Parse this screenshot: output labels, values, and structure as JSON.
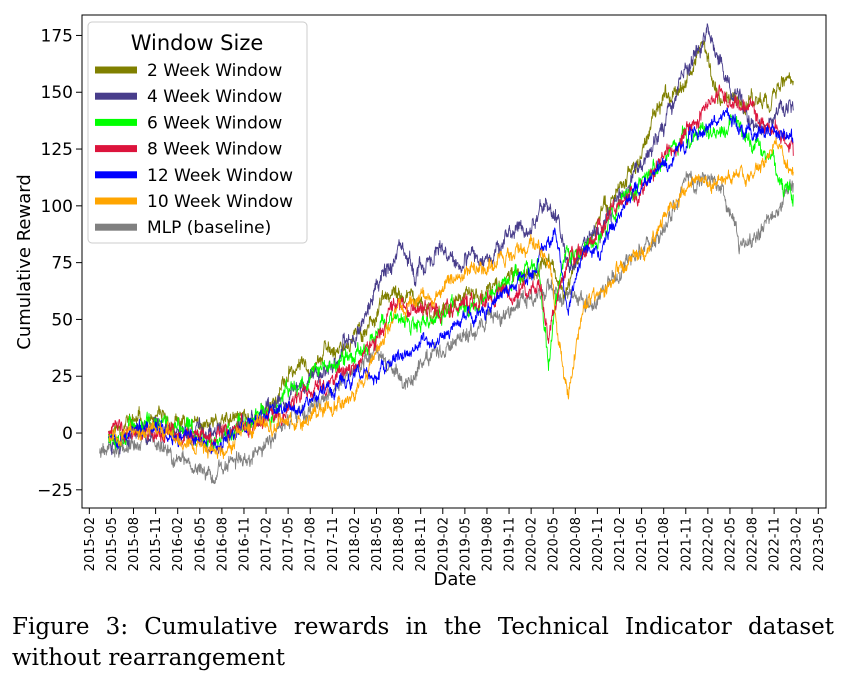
{
  "chart_data": {
    "type": "line",
    "title": "",
    "xlabel": "Date",
    "ylabel": "Cumulative Reward",
    "ylim": [
      -33,
      184
    ],
    "xlim": [
      2015.0,
      2023.42
    ],
    "yticks": [
      -25,
      0,
      25,
      50,
      75,
      100,
      125,
      150,
      175
    ],
    "ytick_labels": [
      "−25",
      "0",
      "25",
      "50",
      "75",
      "100",
      "125",
      "150",
      "175"
    ],
    "xticks": [
      2015.083,
      2015.333,
      2015.583,
      2015.833,
      2016.083,
      2016.333,
      2016.583,
      2016.833,
      2017.083,
      2017.333,
      2017.583,
      2017.833,
      2018.083,
      2018.333,
      2018.583,
      2018.833,
      2019.083,
      2019.333,
      2019.583,
      2019.833,
      2020.083,
      2020.333,
      2020.583,
      2020.833,
      2021.083,
      2021.333,
      2021.583,
      2021.833,
      2022.083,
      2022.333,
      2022.583,
      2022.833,
      2023.083,
      2023.333
    ],
    "xtick_labels": [
      "2015-02",
      "2015-05",
      "2015-08",
      "2015-11",
      "2016-02",
      "2016-05",
      "2016-08",
      "2016-11",
      "2017-02",
      "2017-05",
      "2017-08",
      "2017-11",
      "2018-02",
      "2018-05",
      "2018-08",
      "2018-11",
      "2019-02",
      "2019-05",
      "2019-08",
      "2019-11",
      "2020-02",
      "2020-05",
      "2020-08",
      "2020-11",
      "2021-02",
      "2021-05",
      "2021-08",
      "2021-11",
      "2022-02",
      "2022-05",
      "2022-08",
      "2022-11",
      "2023-02",
      "2023-05"
    ],
    "legend": {
      "title": "Window Size",
      "position": "top-left"
    },
    "series": [
      {
        "name": "2 Week Window",
        "color": "#808000",
        "noise": 2.2,
        "seed": 11,
        "x": [
          2015.3,
          2015.5,
          2015.8,
          2016.0,
          2016.3,
          2016.5,
          2016.8,
          2017.0,
          2017.2,
          2017.4,
          2017.6,
          2017.9,
          2018.2,
          2018.4,
          2018.7,
          2018.9,
          2019.2,
          2019.5,
          2019.8,
          2020.1,
          2020.25,
          2020.35,
          2020.45,
          2020.6,
          2020.8,
          2021.0,
          2021.3,
          2021.5,
          2021.75,
          2021.9,
          2022.05,
          2022.2,
          2022.4,
          2022.6,
          2022.8,
          2022.95,
          2023.05
        ],
        "values": [
          0,
          5,
          5,
          3,
          3,
          2,
          6,
          8,
          16,
          28,
          32,
          38,
          45,
          58,
          60,
          52,
          58,
          60,
          66,
          72,
          76,
          72,
          60,
          75,
          90,
          105,
          120,
          140,
          155,
          163,
          168,
          150,
          145,
          146,
          150,
          155,
          155
        ]
      },
      {
        "name": "4 Week Window",
        "color": "#483d8b",
        "noise": 2.4,
        "seed": 23,
        "x": [
          2015.3,
          2015.5,
          2015.8,
          2016.0,
          2016.3,
          2016.5,
          2016.8,
          2017.0,
          2017.2,
          2017.4,
          2017.6,
          2017.9,
          2018.1,
          2018.3,
          2018.4,
          2018.6,
          2018.8,
          2019.0,
          2019.1,
          2019.3,
          2019.6,
          2019.9,
          2020.1,
          2020.25,
          2020.35,
          2020.5,
          2020.7,
          2020.9,
          2021.1,
          2021.3,
          2021.5,
          2021.7,
          2021.85,
          2022.0,
          2022.1,
          2022.2,
          2022.35,
          2022.5,
          2022.7,
          2022.9,
          2023.05
        ],
        "values": [
          -3,
          1,
          3,
          2,
          0,
          -2,
          2,
          5,
          10,
          18,
          25,
          32,
          45,
          60,
          72,
          78,
          70,
          80,
          76,
          72,
          80,
          88,
          92,
          102,
          96,
          75,
          85,
          92,
          105,
          118,
          130,
          148,
          162,
          172,
          176,
          165,
          148,
          140,
          132,
          145,
          142
        ]
      },
      {
        "name": "6 Week Window",
        "color": "#00ff00",
        "noise": 2.3,
        "seed": 37,
        "x": [
          2015.3,
          2015.6,
          2015.9,
          2016.1,
          2016.3,
          2016.5,
          2016.8,
          2017.0,
          2017.2,
          2017.4,
          2017.6,
          2017.9,
          2018.2,
          2018.4,
          2018.6,
          2018.8,
          2019.0,
          2019.2,
          2019.5,
          2019.8,
          2020.0,
          2020.15,
          2020.2,
          2020.28,
          2020.35,
          2020.45,
          2020.6,
          2020.8,
          2021.0,
          2021.2,
          2021.5,
          2021.8,
          2022.0,
          2022.2,
          2022.4,
          2022.6,
          2022.8,
          2022.95,
          2023.05
        ],
        "values": [
          0,
          4,
          3,
          2,
          0,
          -2,
          2,
          6,
          10,
          20,
          27,
          30,
          38,
          50,
          48,
          45,
          50,
          55,
          58,
          65,
          72,
          75,
          60,
          30,
          55,
          75,
          80,
          82,
          98,
          108,
          118,
          128,
          135,
          130,
          138,
          126,
          122,
          110,
          105
        ]
      },
      {
        "name": "8 Week Window",
        "color": "#dc143c",
        "noise": 2.2,
        "seed": 41,
        "x": [
          2015.3,
          2015.6,
          2015.9,
          2016.1,
          2016.3,
          2016.5,
          2016.8,
          2017.0,
          2017.2,
          2017.4,
          2017.6,
          2017.9,
          2018.2,
          2018.4,
          2018.6,
          2018.8,
          2019.0,
          2019.2,
          2019.5,
          2019.8,
          2020.1,
          2020.2,
          2020.28,
          2020.35,
          2020.5,
          2020.7,
          2020.9,
          2021.1,
          2021.4,
          2021.6,
          2021.8,
          2022.0,
          2022.2,
          2022.4,
          2022.6,
          2022.8,
          2022.95,
          2023.05
        ],
        "values": [
          0,
          2,
          1,
          0,
          -2,
          -3,
          0,
          4,
          8,
          14,
          18,
          25,
          35,
          45,
          55,
          52,
          54,
          55,
          58,
          62,
          65,
          60,
          35,
          55,
          75,
          82,
          90,
          100,
          110,
          122,
          132,
          142,
          150,
          145,
          140,
          135,
          128,
          122
        ]
      },
      {
        "name": "12 Week Window",
        "color": "#0000ff",
        "noise": 1.9,
        "seed": 53,
        "x": [
          2015.3,
          2015.6,
          2015.9,
          2016.1,
          2016.3,
          2016.5,
          2016.8,
          2017.0,
          2017.2,
          2017.5,
          2017.8,
          2018.1,
          2018.4,
          2018.6,
          2018.8,
          2019.0,
          2019.3,
          2019.6,
          2019.9,
          2020.1,
          2020.25,
          2020.35,
          2020.5,
          2020.7,
          2020.9,
          2021.1,
          2021.4,
          2021.6,
          2021.85,
          2022.1,
          2022.3,
          2022.5,
          2022.7,
          2022.9,
          2023.05
        ],
        "values": [
          0,
          1,
          0,
          -2,
          -3,
          -5,
          2,
          6,
          10,
          14,
          20,
          24,
          26,
          34,
          38,
          40,
          48,
          56,
          65,
          72,
          85,
          88,
          55,
          80,
          82,
          100,
          112,
          118,
          128,
          136,
          142,
          132,
          135,
          130,
          128
        ]
      },
      {
        "name": "10 Week Window",
        "color": "#ffa500",
        "noise": 2.0,
        "seed": 67,
        "x": [
          2015.3,
          2015.6,
          2015.9,
          2016.1,
          2016.3,
          2016.5,
          2016.8,
          2017.0,
          2017.2,
          2017.4,
          2017.6,
          2017.9,
          2018.2,
          2018.4,
          2018.6,
          2018.8,
          2019.0,
          2019.3,
          2019.6,
          2019.9,
          2020.1,
          2020.2,
          2020.3,
          2020.4,
          2020.5,
          2020.6,
          2020.7,
          2020.9,
          2021.1,
          2021.4,
          2021.7,
          2021.9,
          2022.1,
          2022.3,
          2022.5,
          2022.7,
          2022.9,
          2023.05
        ],
        "values": [
          0,
          1,
          0,
          -2,
          -4,
          -8,
          -2,
          2,
          6,
          5,
          10,
          14,
          24,
          40,
          55,
          58,
          62,
          70,
          75,
          80,
          83,
          80,
          70,
          40,
          15,
          40,
          58,
          62,
          72,
          82,
          100,
          110,
          108,
          115,
          112,
          118,
          125,
          115
        ]
      },
      {
        "name": "MLP (baseline)",
        "color": "#808080",
        "noise": 2.2,
        "seed": 79,
        "x": [
          2015.2,
          2015.4,
          2015.7,
          2015.9,
          2016.1,
          2016.3,
          2016.5,
          2016.7,
          2016.9,
          2017.1,
          2017.3,
          2017.5,
          2017.7,
          2017.9,
          2018.1,
          2018.3,
          2018.5,
          2018.7,
          2018.9,
          2019.1,
          2019.3,
          2019.6,
          2019.9,
          2020.1,
          2020.3,
          2020.5,
          2020.7,
          2020.9,
          2021.1,
          2021.4,
          2021.6,
          2021.8,
          2021.95,
          2022.1,
          2022.25,
          2022.35,
          2022.45,
          2022.6,
          2022.75,
          2022.9,
          2023.05
        ],
        "values": [
          -8,
          -5,
          -3,
          -6,
          -12,
          -15,
          -20,
          -14,
          -10,
          -5,
          5,
          8,
          12,
          18,
          28,
          35,
          28,
          22,
          32,
          38,
          44,
          50,
          55,
          60,
          65,
          62,
          55,
          60,
          72,
          85,
          90,
          108,
          112,
          115,
          108,
          95,
          80,
          88,
          95,
          98,
          110
        ]
      }
    ]
  },
  "caption": {
    "text": "Figure 3:  Cumulative rewards in the Technical Indicator dataset without rearrangement"
  }
}
